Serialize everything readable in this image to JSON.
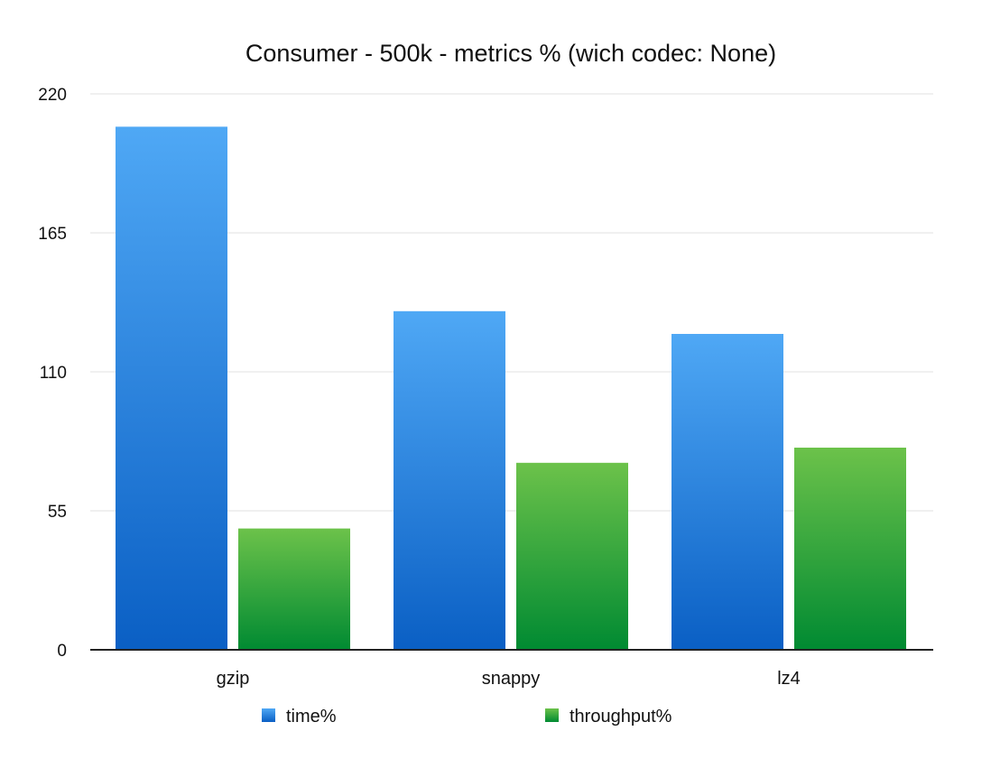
{
  "chart_data": {
    "type": "bar",
    "title": "Consumer - 500k - metrics % (wich codec: None)",
    "xlabel": "",
    "ylabel": "",
    "categories": [
      "gzip",
      "snappy",
      "lz4"
    ],
    "series": [
      {
        "name": "time%",
        "values": [
          207,
          134,
          125
        ],
        "color_top": "#4fa8f5",
        "color_bottom": "#0a5fc4"
      },
      {
        "name": "throughput%",
        "values": [
          48,
          74,
          80
        ],
        "color_top": "#6cc24a",
        "color_bottom": "#008a32"
      }
    ],
    "yticks": [
      0,
      55,
      110,
      165,
      220
    ],
    "ylim": [
      0,
      220
    ],
    "grid": true,
    "legend_position": "bottom"
  }
}
